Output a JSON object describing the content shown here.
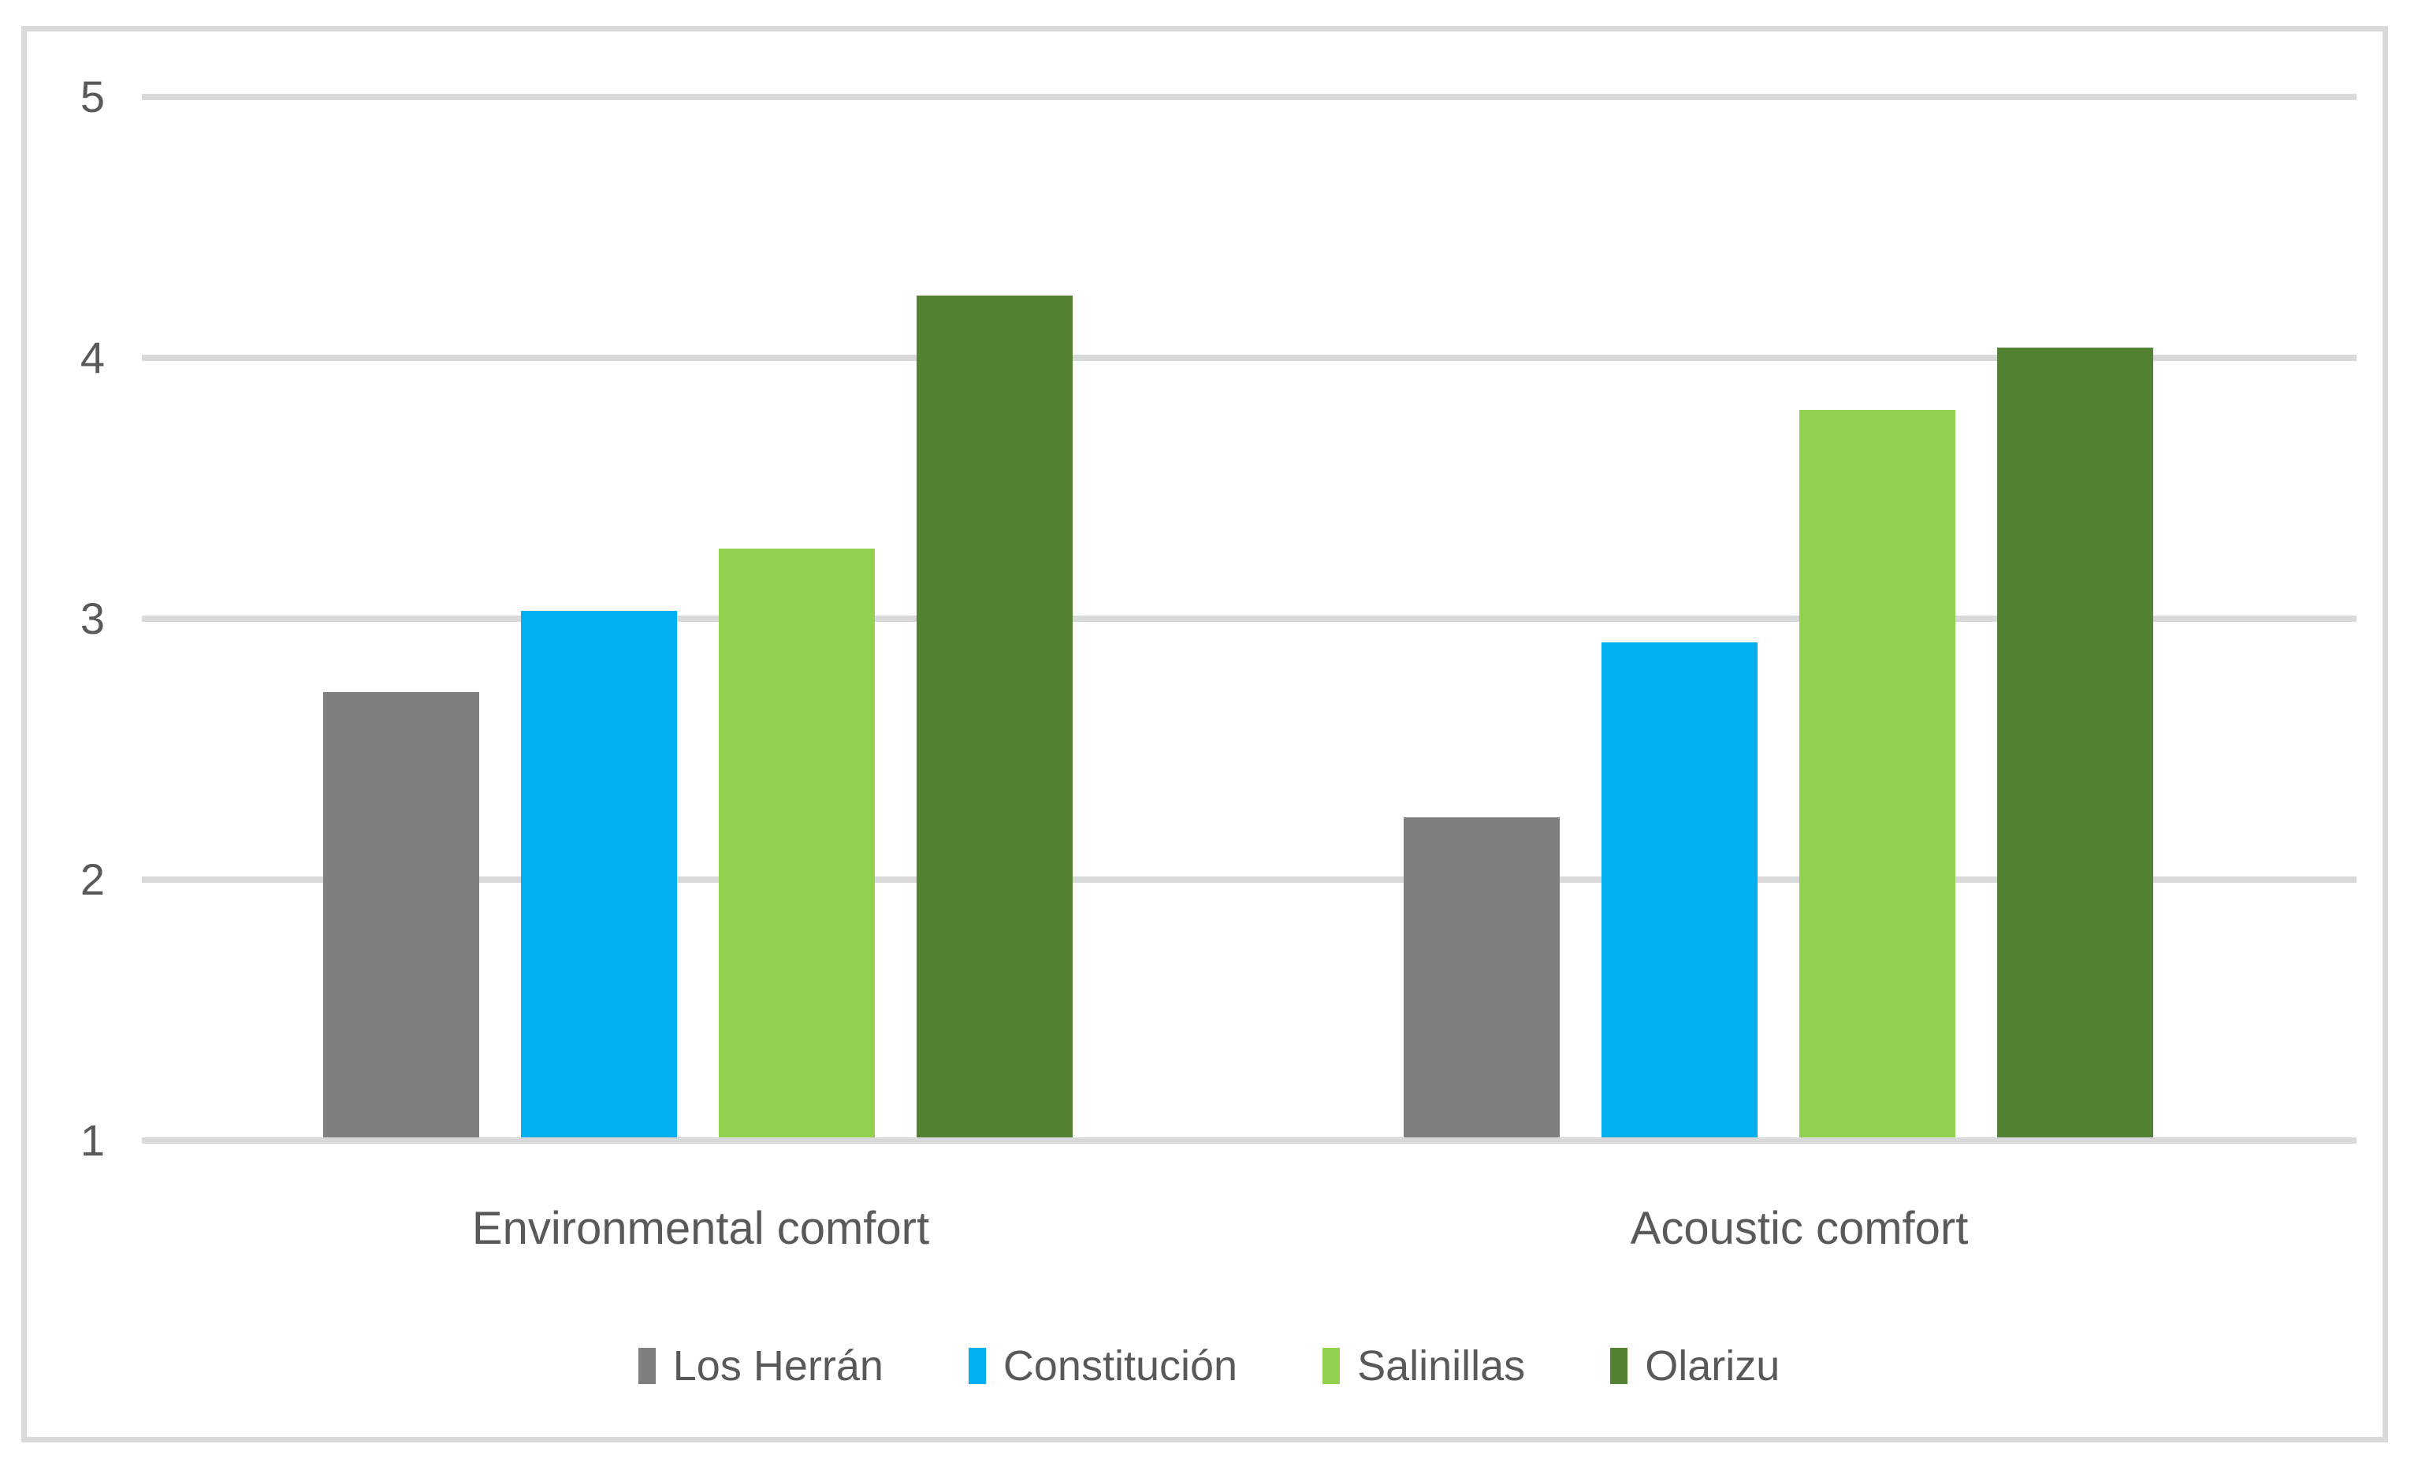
{
  "chart_data": {
    "type": "bar",
    "title": "",
    "xlabel": "",
    "ylabel": "",
    "categories": [
      "Environmental comfort",
      "Acoustic comfort"
    ],
    "series": [
      {
        "name": "Los Herrán",
        "color": "#7F7F7F",
        "values": [
          2.72,
          2.24
        ]
      },
      {
        "name": "Constitución",
        "color": "#00B0F0",
        "values": [
          3.03,
          2.91
        ]
      },
      {
        "name": "Salinillas",
        "color": "#92D050",
        "values": [
          3.27,
          3.8
        ]
      },
      {
        "name": "Olarizu",
        "color": "#548235",
        "values": [
          4.24,
          4.04
        ]
      }
    ],
    "ylim": [
      1,
      5
    ],
    "y_ticks": [
      5,
      4,
      3,
      2,
      1
    ],
    "grid": true,
    "legend_position": "bottom"
  },
  "colors": {
    "gridline": "#D9D9D9",
    "frame_border": "#D9D9D9",
    "axis_text": "#595959",
    "background": "#FFFFFF"
  }
}
